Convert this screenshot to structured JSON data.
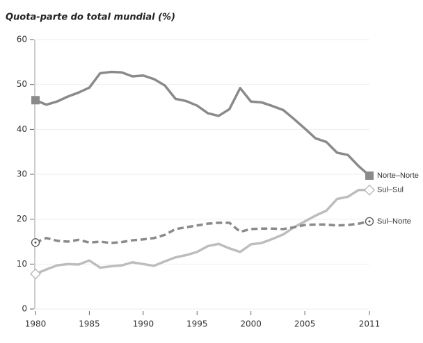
{
  "chart_data": {
    "type": "line",
    "title": "Quota-parte do total mundial  (%)",
    "x": [
      1980,
      1981,
      1982,
      1983,
      1984,
      1985,
      1986,
      1987,
      1988,
      1989,
      1990,
      1991,
      1992,
      1993,
      1994,
      1995,
      1996,
      1997,
      1998,
      1999,
      2000,
      2001,
      2002,
      2003,
      2004,
      2005,
      2006,
      2007,
      2008,
      2009,
      2010,
      2011
    ],
    "series": [
      {
        "name": "Norte–Norte",
        "color": "#8a8a8a",
        "dash": false,
        "marker": "square",
        "values": [
          46.5,
          45.5,
          46.2,
          47.3,
          48.2,
          49.3,
          52.5,
          52.8,
          52.7,
          51.8,
          52.0,
          51.2,
          49.8,
          46.8,
          46.3,
          45.3,
          43.6,
          43.0,
          44.5,
          49.2,
          46.2,
          46.0,
          45.2,
          44.3,
          42.3,
          40.2,
          38.0,
          37.2,
          34.8,
          34.3,
          31.8,
          29.7
        ]
      },
      {
        "name": "Sul–Sul",
        "color": "#bdbdbd",
        "dash": false,
        "marker": "diamond",
        "values": [
          7.8,
          8.8,
          9.7,
          10.0,
          9.9,
          10.8,
          9.2,
          9.5,
          9.7,
          10.4,
          10.0,
          9.6,
          10.6,
          11.5,
          12.0,
          12.7,
          14.0,
          14.5,
          13.5,
          12.7,
          14.4,
          14.7,
          15.6,
          16.6,
          18.2,
          19.5,
          20.8,
          21.9,
          24.5,
          25.0,
          26.5,
          26.5
        ]
      },
      {
        "name": "Sul–Norte",
        "color": "#8a8a8a",
        "dash": true,
        "marker": "circle",
        "values": [
          14.8,
          15.8,
          15.2,
          15.0,
          15.4,
          14.8,
          15.0,
          14.7,
          14.9,
          15.3,
          15.5,
          15.8,
          16.5,
          17.8,
          18.2,
          18.6,
          19.0,
          19.2,
          19.2,
          17.2,
          17.8,
          17.9,
          17.9,
          17.8,
          18.2,
          18.7,
          18.8,
          18.8,
          18.6,
          18.7,
          19.0,
          19.5
        ]
      }
    ],
    "xlim": [
      1980,
      2011
    ],
    "xticks": [
      1980,
      1985,
      1990,
      1995,
      2000,
      2005,
      2011
    ],
    "ylim": [
      0,
      60
    ],
    "yticks": [
      0,
      10,
      20,
      30,
      40,
      50,
      60
    ],
    "grid": true
  }
}
